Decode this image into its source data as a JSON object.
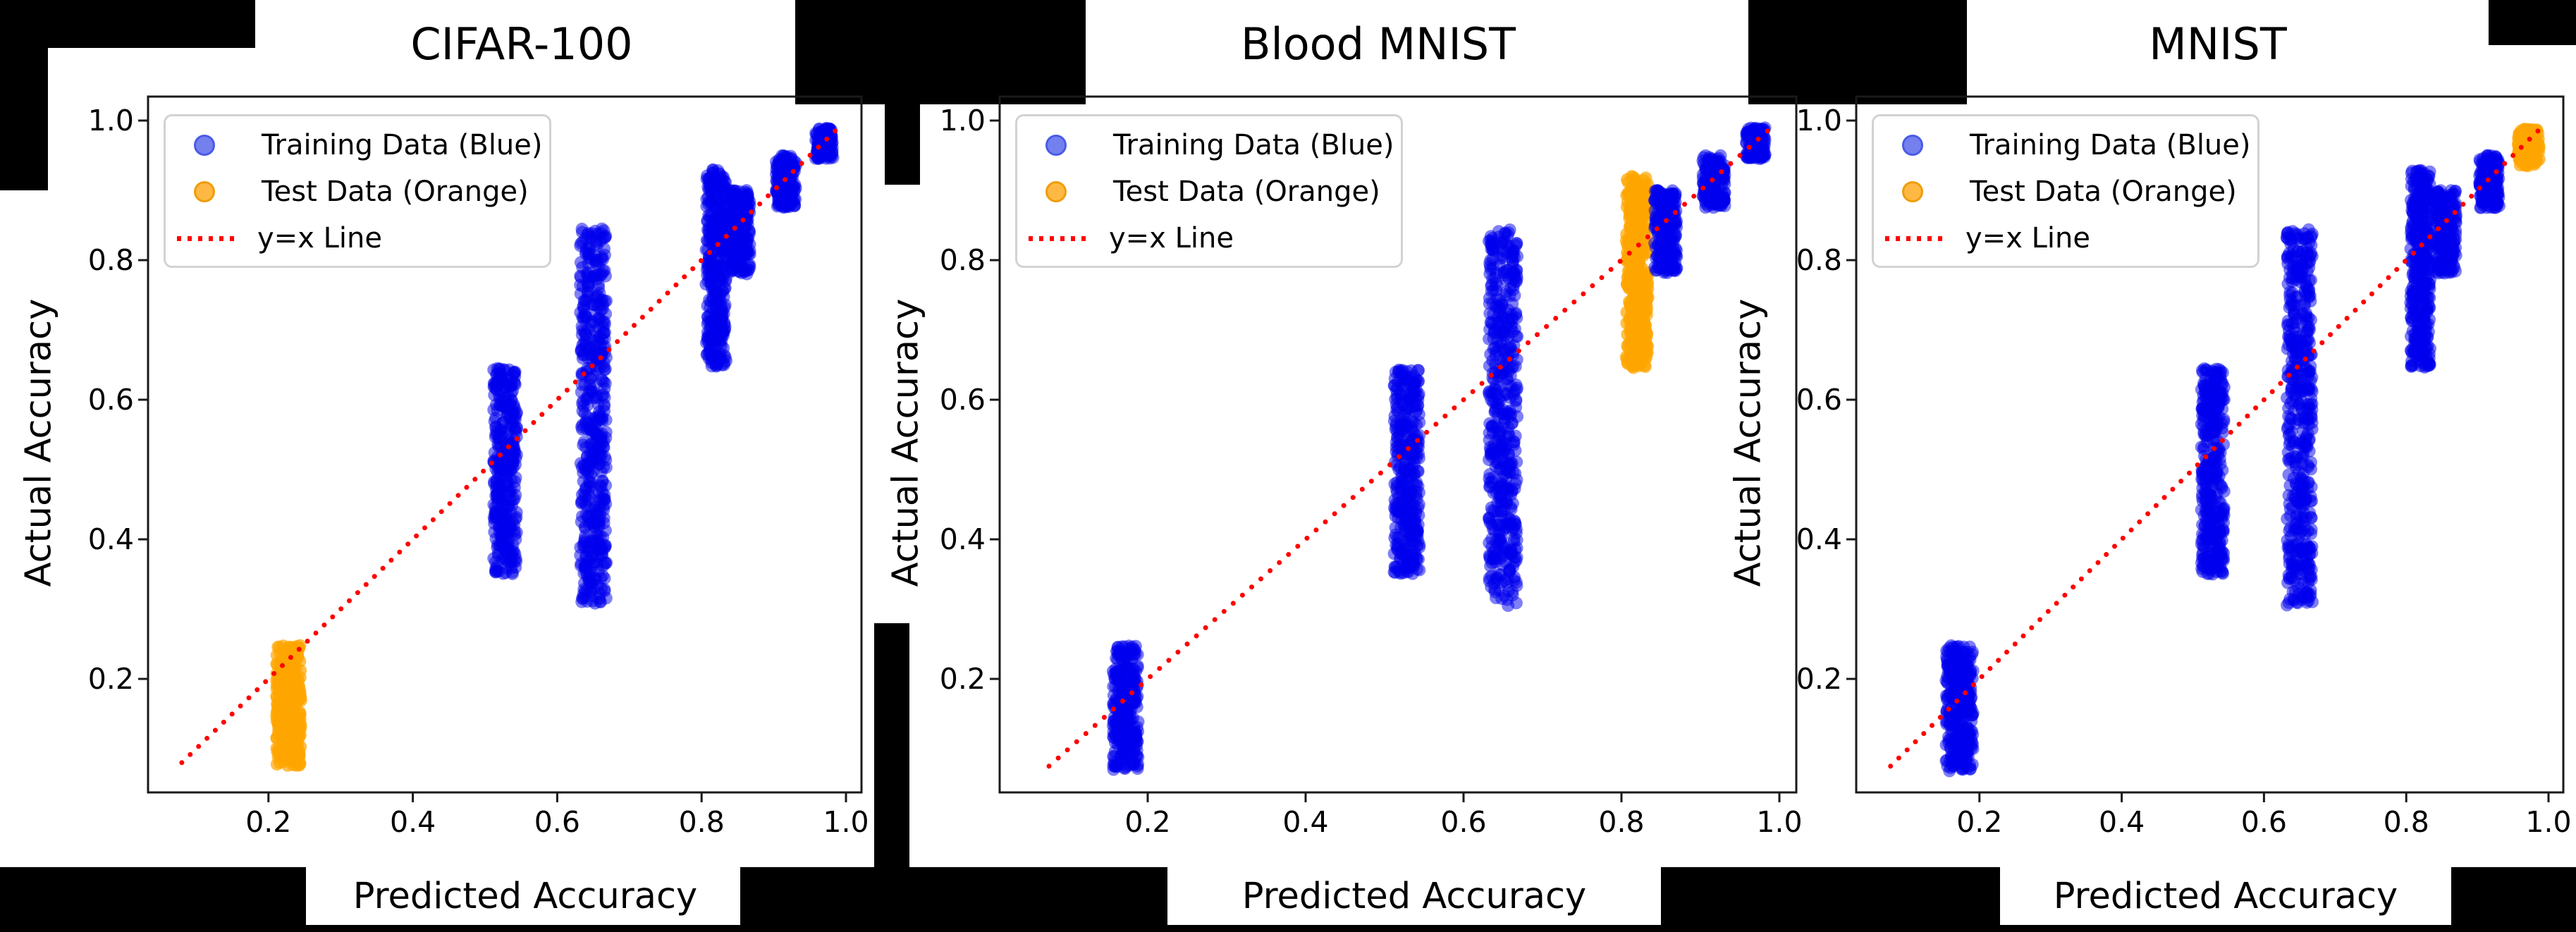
{
  "colors": {
    "background": "#000000",
    "panel_background": "#ffffff",
    "train_scatter": "#0000EE",
    "test_scatter": "#FFA500",
    "identity_line": "#FF0000",
    "spine": "#1A1A1A",
    "legend_train_marker": "#7580EF",
    "legend_test_marker": "#FFB844"
  },
  "legend": {
    "items": [
      {
        "label": "Training Data (Blue)",
        "series": "train",
        "marker": "circle-icon"
      },
      {
        "label": "Test Data (Orange)",
        "series": "test",
        "marker": "circle-icon"
      },
      {
        "label": "y=x Line",
        "series": "line",
        "marker": "dotted-line-icon"
      }
    ]
  },
  "chart_data": [
    {
      "type": "scatter",
      "title": "CIFAR-100",
      "xlabel": "Predicted Accuracy",
      "ylabel": "Actual Accuracy",
      "xticks": [
        "0.2",
        "0.4",
        "0.6",
        "0.8",
        "1.0"
      ],
      "yticks": [
        "0.2",
        "0.4",
        "0.6",
        "0.8",
        "1.0"
      ],
      "xlim": [
        0.03,
        1.02
      ],
      "ylim": [
        0.04,
        1.03
      ],
      "grid": false,
      "legend_position": "upper left",
      "line": {
        "label": "y=x Line",
        "x_start": 0.08,
        "x_end": 0.985
      },
      "clusters": [
        {
          "series": "test",
          "x": 0.228,
          "x_spread": 0.017,
          "y_min": 0.075,
          "y_max": 0.248,
          "n": 300
        },
        {
          "series": "train",
          "x": 0.528,
          "x_spread": 0.016,
          "y_min": 0.35,
          "y_max": 0.645,
          "n": 340
        },
        {
          "series": "train",
          "x": 0.65,
          "x_spread": 0.018,
          "y_min": 0.305,
          "y_max": 0.845,
          "n": 480
        },
        {
          "series": "train",
          "x": 0.82,
          "x_spread": 0.014,
          "y_min": 0.645,
          "y_max": 0.93,
          "n": 340
        },
        {
          "series": "train",
          "x": 0.853,
          "x_spread": 0.014,
          "y_min": 0.78,
          "y_max": 0.9,
          "n": 220
        },
        {
          "series": "train",
          "x": 0.917,
          "x_spread": 0.014,
          "y_min": 0.875,
          "y_max": 0.95,
          "n": 170
        },
        {
          "series": "train",
          "x": 0.97,
          "x_spread": 0.012,
          "y_min": 0.945,
          "y_max": 0.99,
          "n": 130
        }
      ]
    },
    {
      "type": "scatter",
      "title": "Blood MNIST",
      "xlabel": "Predicted Accuracy",
      "ylabel": "Actual Accuracy",
      "xticks": [
        "0.2",
        "0.4",
        "0.6",
        "0.8",
        "1.0"
      ],
      "yticks": [
        "0.2",
        "0.4",
        "0.6",
        "0.8",
        "1.0"
      ],
      "xlim": [
        0.03,
        1.02
      ],
      "ylim": [
        0.04,
        1.03
      ],
      "grid": false,
      "legend_position": "upper left",
      "line": {
        "label": "y=x Line",
        "x_start": 0.075,
        "x_end": 0.985
      },
      "clusters": [
        {
          "series": "train",
          "x": 0.172,
          "x_spread": 0.016,
          "y_min": 0.07,
          "y_max": 0.248,
          "n": 300
        },
        {
          "series": "train",
          "x": 0.528,
          "x_spread": 0.016,
          "y_min": 0.35,
          "y_max": 0.645,
          "n": 340
        },
        {
          "series": "train",
          "x": 0.65,
          "x_spread": 0.018,
          "y_min": 0.305,
          "y_max": 0.845,
          "n": 480
        },
        {
          "series": "test",
          "x": 0.82,
          "x_spread": 0.014,
          "y_min": 0.645,
          "y_max": 0.92,
          "n": 340
        },
        {
          "series": "train",
          "x": 0.856,
          "x_spread": 0.014,
          "y_min": 0.78,
          "y_max": 0.9,
          "n": 220
        },
        {
          "series": "train",
          "x": 0.917,
          "x_spread": 0.014,
          "y_min": 0.875,
          "y_max": 0.95,
          "n": 170
        },
        {
          "series": "train",
          "x": 0.97,
          "x_spread": 0.012,
          "y_min": 0.945,
          "y_max": 0.99,
          "n": 130
        }
      ]
    },
    {
      "type": "scatter",
      "title": "MNIST",
      "xlabel": "Predicted Accuracy",
      "ylabel": "Actual Accuracy",
      "xticks": [
        "0.2",
        "0.4",
        "0.6",
        "0.8",
        "1.0"
      ],
      "yticks": [
        "0.2",
        "0.4",
        "0.6",
        "0.8",
        "1.0"
      ],
      "xlim": [
        0.03,
        1.02
      ],
      "ylim": [
        0.04,
        1.03
      ],
      "grid": false,
      "legend_position": "upper left",
      "line": {
        "label": "y=x Line",
        "x_start": 0.075,
        "x_end": 0.985
      },
      "clusters": [
        {
          "series": "train",
          "x": 0.172,
          "x_spread": 0.019,
          "y_min": 0.068,
          "y_max": 0.248,
          "n": 300
        },
        {
          "series": "train",
          "x": 0.528,
          "x_spread": 0.016,
          "y_min": 0.35,
          "y_max": 0.645,
          "n": 340
        },
        {
          "series": "train",
          "x": 0.65,
          "x_spread": 0.018,
          "y_min": 0.305,
          "y_max": 0.845,
          "n": 480
        },
        {
          "series": "train",
          "x": 0.82,
          "x_spread": 0.014,
          "y_min": 0.645,
          "y_max": 0.93,
          "n": 340
        },
        {
          "series": "train",
          "x": 0.856,
          "x_spread": 0.014,
          "y_min": 0.78,
          "y_max": 0.9,
          "n": 220
        },
        {
          "series": "train",
          "x": 0.917,
          "x_spread": 0.014,
          "y_min": 0.875,
          "y_max": 0.95,
          "n": 170
        },
        {
          "series": "test",
          "x": 0.972,
          "x_spread": 0.015,
          "y_min": 0.935,
          "y_max": 0.99,
          "n": 140
        }
      ]
    }
  ]
}
